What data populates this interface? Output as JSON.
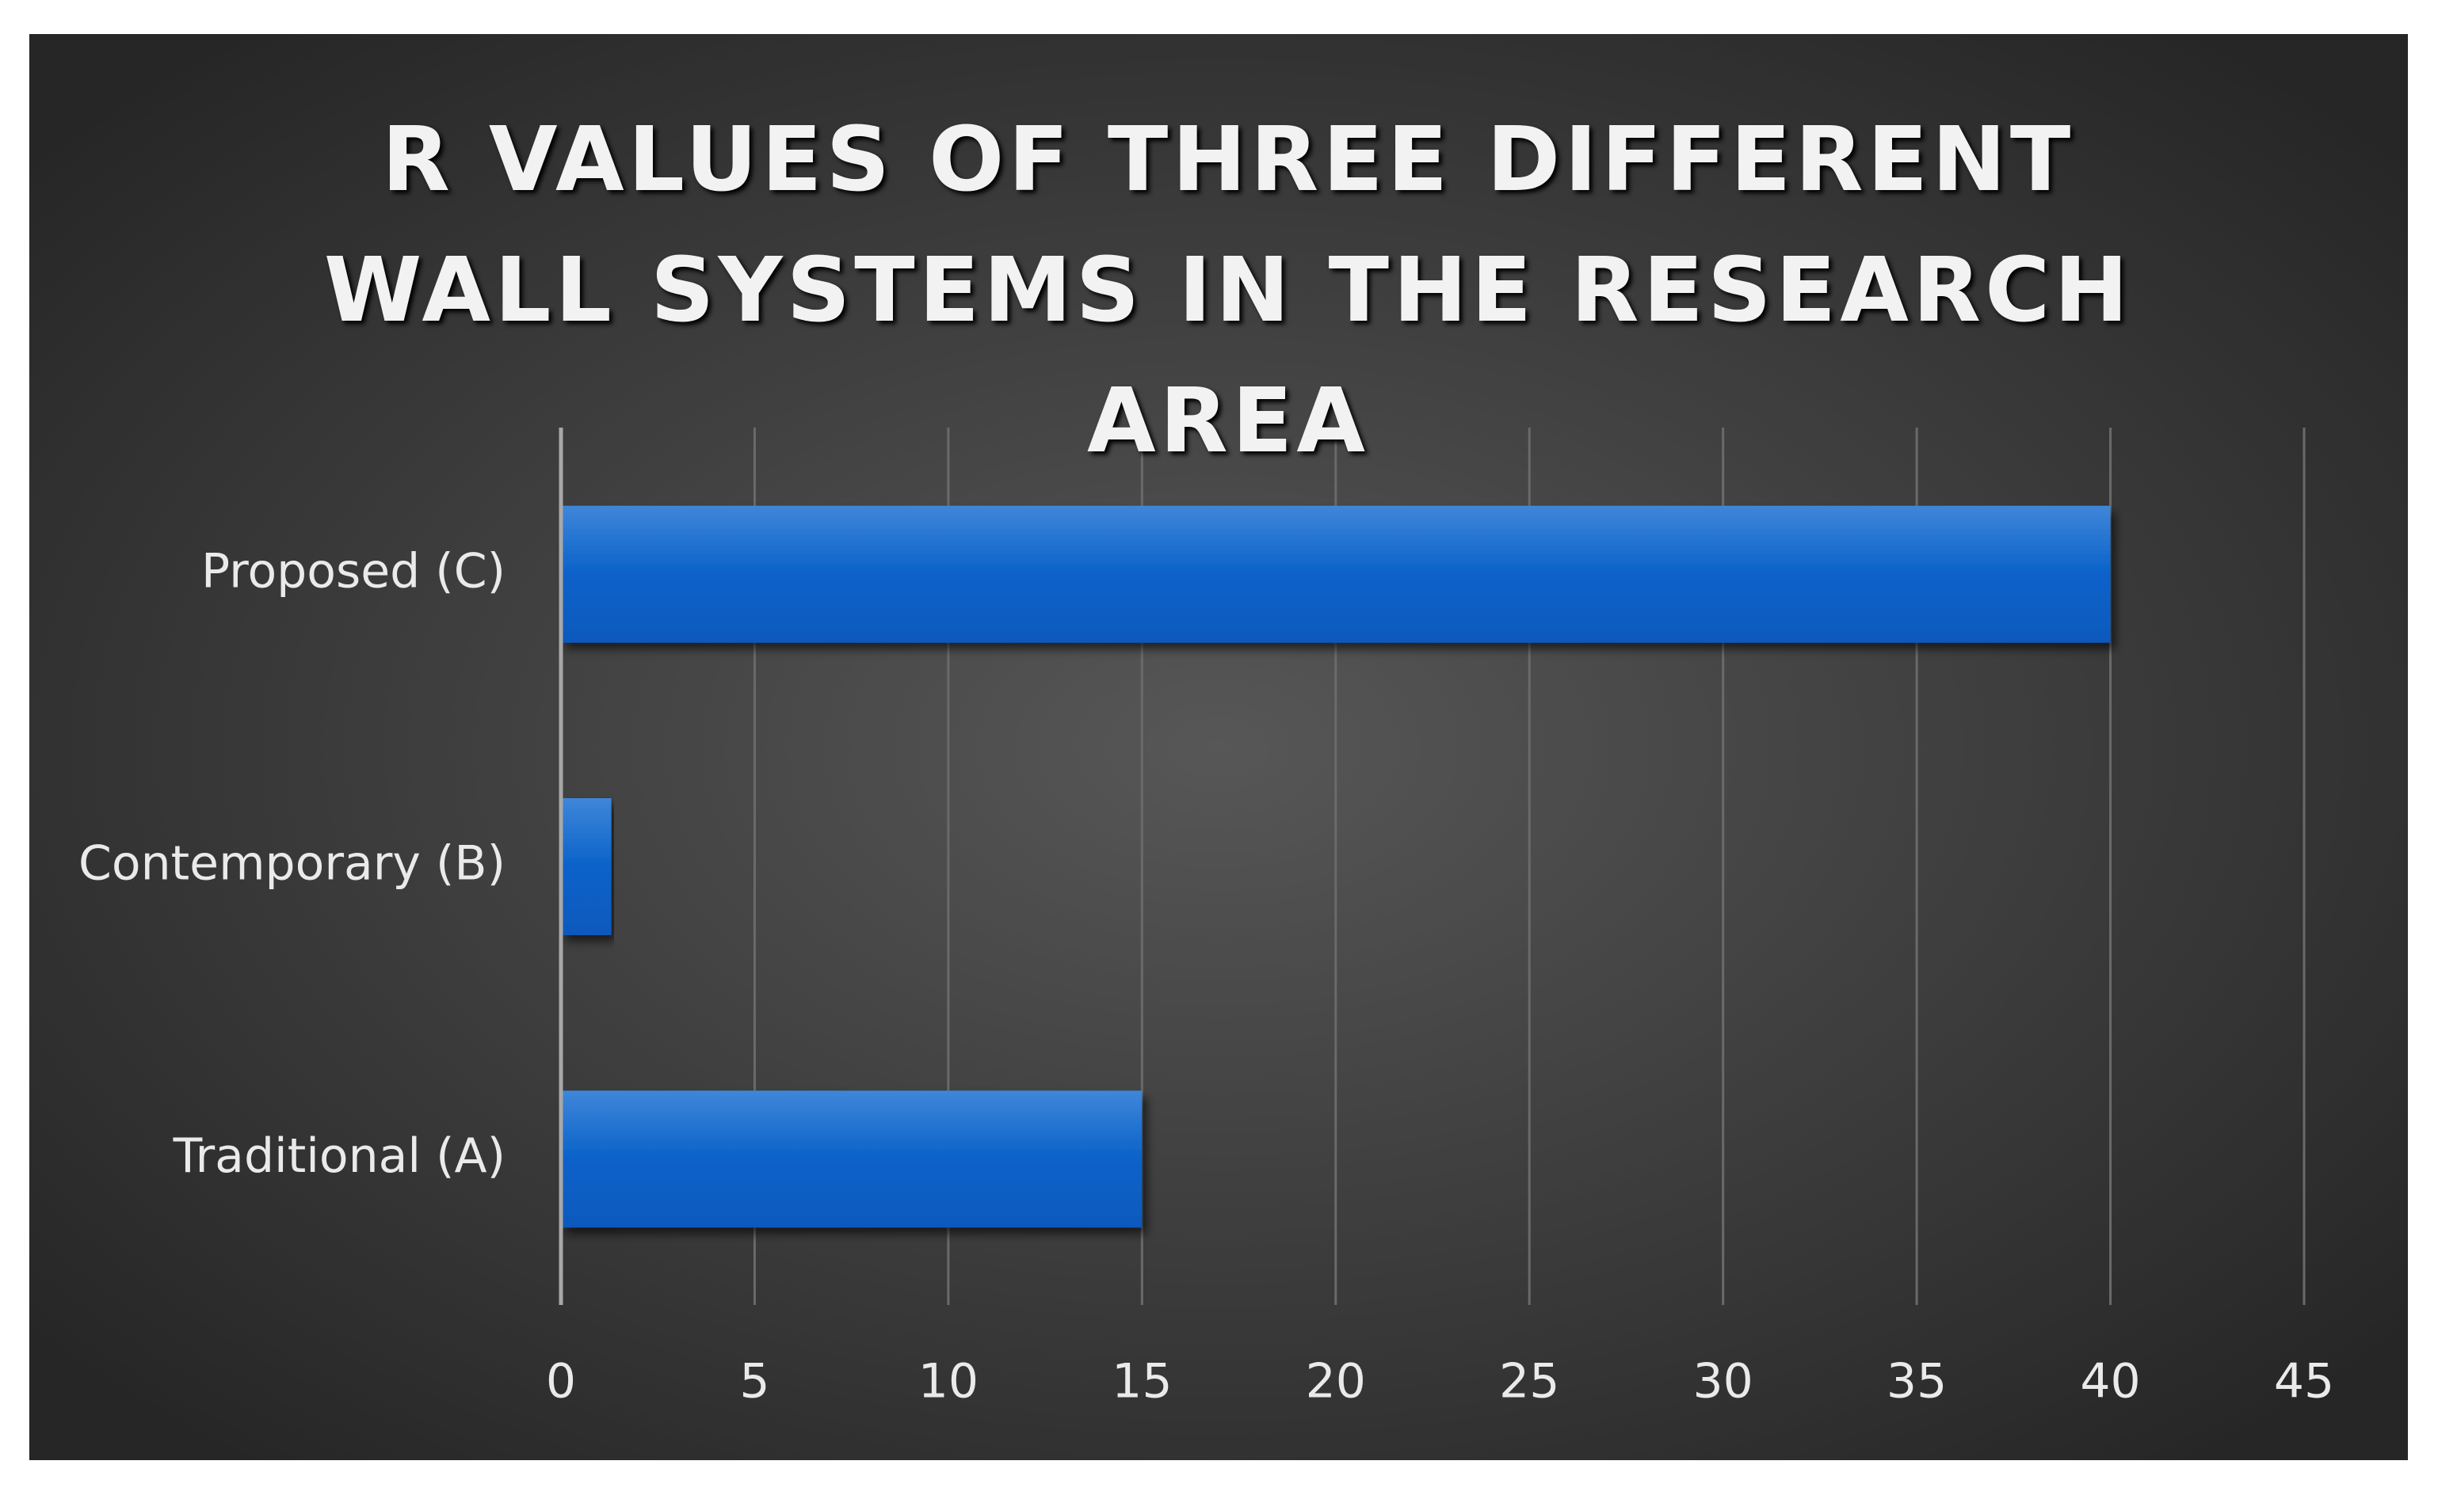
{
  "chart_data": {
    "type": "hbar",
    "title": "R VALUES OF THREE DIFFERENT WALL SYSTEMS IN THE RESEARCH AREA",
    "categories": [
      "Traditional (A)",
      "Contemporary (B)",
      "Proposed (C)"
    ],
    "values": [
      15,
      1.3,
      40
    ],
    "color": "#0a62c9",
    "xlim": [
      0,
      45
    ],
    "xticks": [
      0,
      5,
      10,
      15,
      20,
      25,
      30,
      35,
      40,
      45
    ],
    "grid": true
  }
}
